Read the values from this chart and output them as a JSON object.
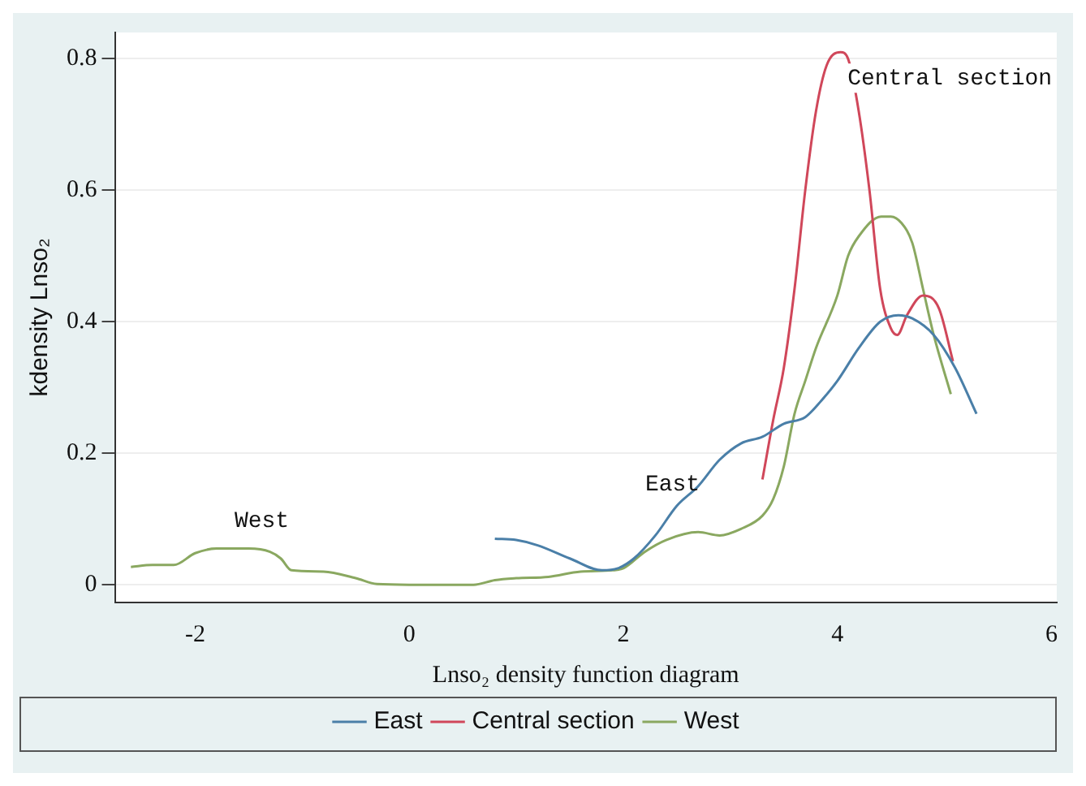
{
  "chart_data": {
    "type": "line",
    "xlabel": "Lnso₂ density function diagram",
    "ylabel": "kdensity Lnso₂",
    "xlim": [
      -2.75,
      6.05
    ],
    "xticks": [
      -2,
      0,
      2,
      4,
      6
    ],
    "ylim": [
      -0.027,
      0.84
    ],
    "yticks": [
      0,
      0.2,
      0.4,
      0.6,
      0.8
    ],
    "grid": "y",
    "legend": "bottom",
    "marker": "none",
    "line_style": "solid",
    "series": [
      {
        "name": "East",
        "color": "#4a7fa8",
        "x": [
          0.8,
          1.0,
          1.2,
          1.5,
          1.8,
          1.95,
          2.1,
          2.3,
          2.5,
          2.7,
          2.9,
          3.1,
          3.3,
          3.5,
          3.7,
          3.85,
          4.0,
          4.2,
          4.4,
          4.57,
          4.7,
          4.9,
          5.1,
          5.3
        ],
        "values": [
          0.07,
          0.068,
          0.06,
          0.04,
          0.022,
          0.025,
          0.04,
          0.075,
          0.12,
          0.15,
          0.19,
          0.215,
          0.225,
          0.245,
          0.255,
          0.28,
          0.31,
          0.36,
          0.4,
          0.41,
          0.405,
          0.38,
          0.33,
          0.26
        ]
      },
      {
        "name": "Central section",
        "color": "#d0475a",
        "x": [
          3.3,
          3.4,
          3.5,
          3.6,
          3.7,
          3.8,
          3.9,
          4.03,
          4.1,
          4.2,
          4.3,
          4.4,
          4.5,
          4.56,
          4.65,
          4.8,
          4.95,
          5.08
        ],
        "values": [
          0.16,
          0.25,
          0.33,
          0.45,
          0.6,
          0.72,
          0.79,
          0.81,
          0.8,
          0.72,
          0.6,
          0.45,
          0.39,
          0.38,
          0.41,
          0.44,
          0.42,
          0.34
        ]
      },
      {
        "name": "West",
        "color": "#8aa860",
        "x": [
          -2.6,
          -2.4,
          -2.2,
          -2.0,
          -1.8,
          -1.5,
          -1.3,
          -1.2,
          -1.1,
          -0.8,
          -0.5,
          -0.3,
          0,
          0.6,
          0.8,
          1.0,
          1.3,
          1.6,
          1.9,
          2.0,
          2.2,
          2.4,
          2.7,
          2.9,
          3.1,
          3.3,
          3.4,
          3.5,
          3.6,
          3.7,
          3.8,
          4.0,
          4.1,
          4.2,
          4.41,
          4.5,
          4.6,
          4.7,
          4.8,
          4.9,
          5.06
        ],
        "values": [
          0.027,
          0.03,
          0.03,
          0.048,
          0.055,
          0.055,
          0.05,
          0.04,
          0.022,
          0.02,
          0.01,
          0.001,
          0,
          0,
          0.007,
          0.01,
          0.012,
          0.02,
          0.022,
          0.025,
          0.05,
          0.068,
          0.08,
          0.075,
          0.085,
          0.105,
          0.13,
          0.18,
          0.26,
          0.31,
          0.36,
          0.44,
          0.5,
          0.53,
          0.56,
          0.56,
          0.55,
          0.52,
          0.45,
          0.38,
          0.29
        ]
      }
    ],
    "annotations": [
      "West",
      "East",
      "Central section"
    ]
  }
}
